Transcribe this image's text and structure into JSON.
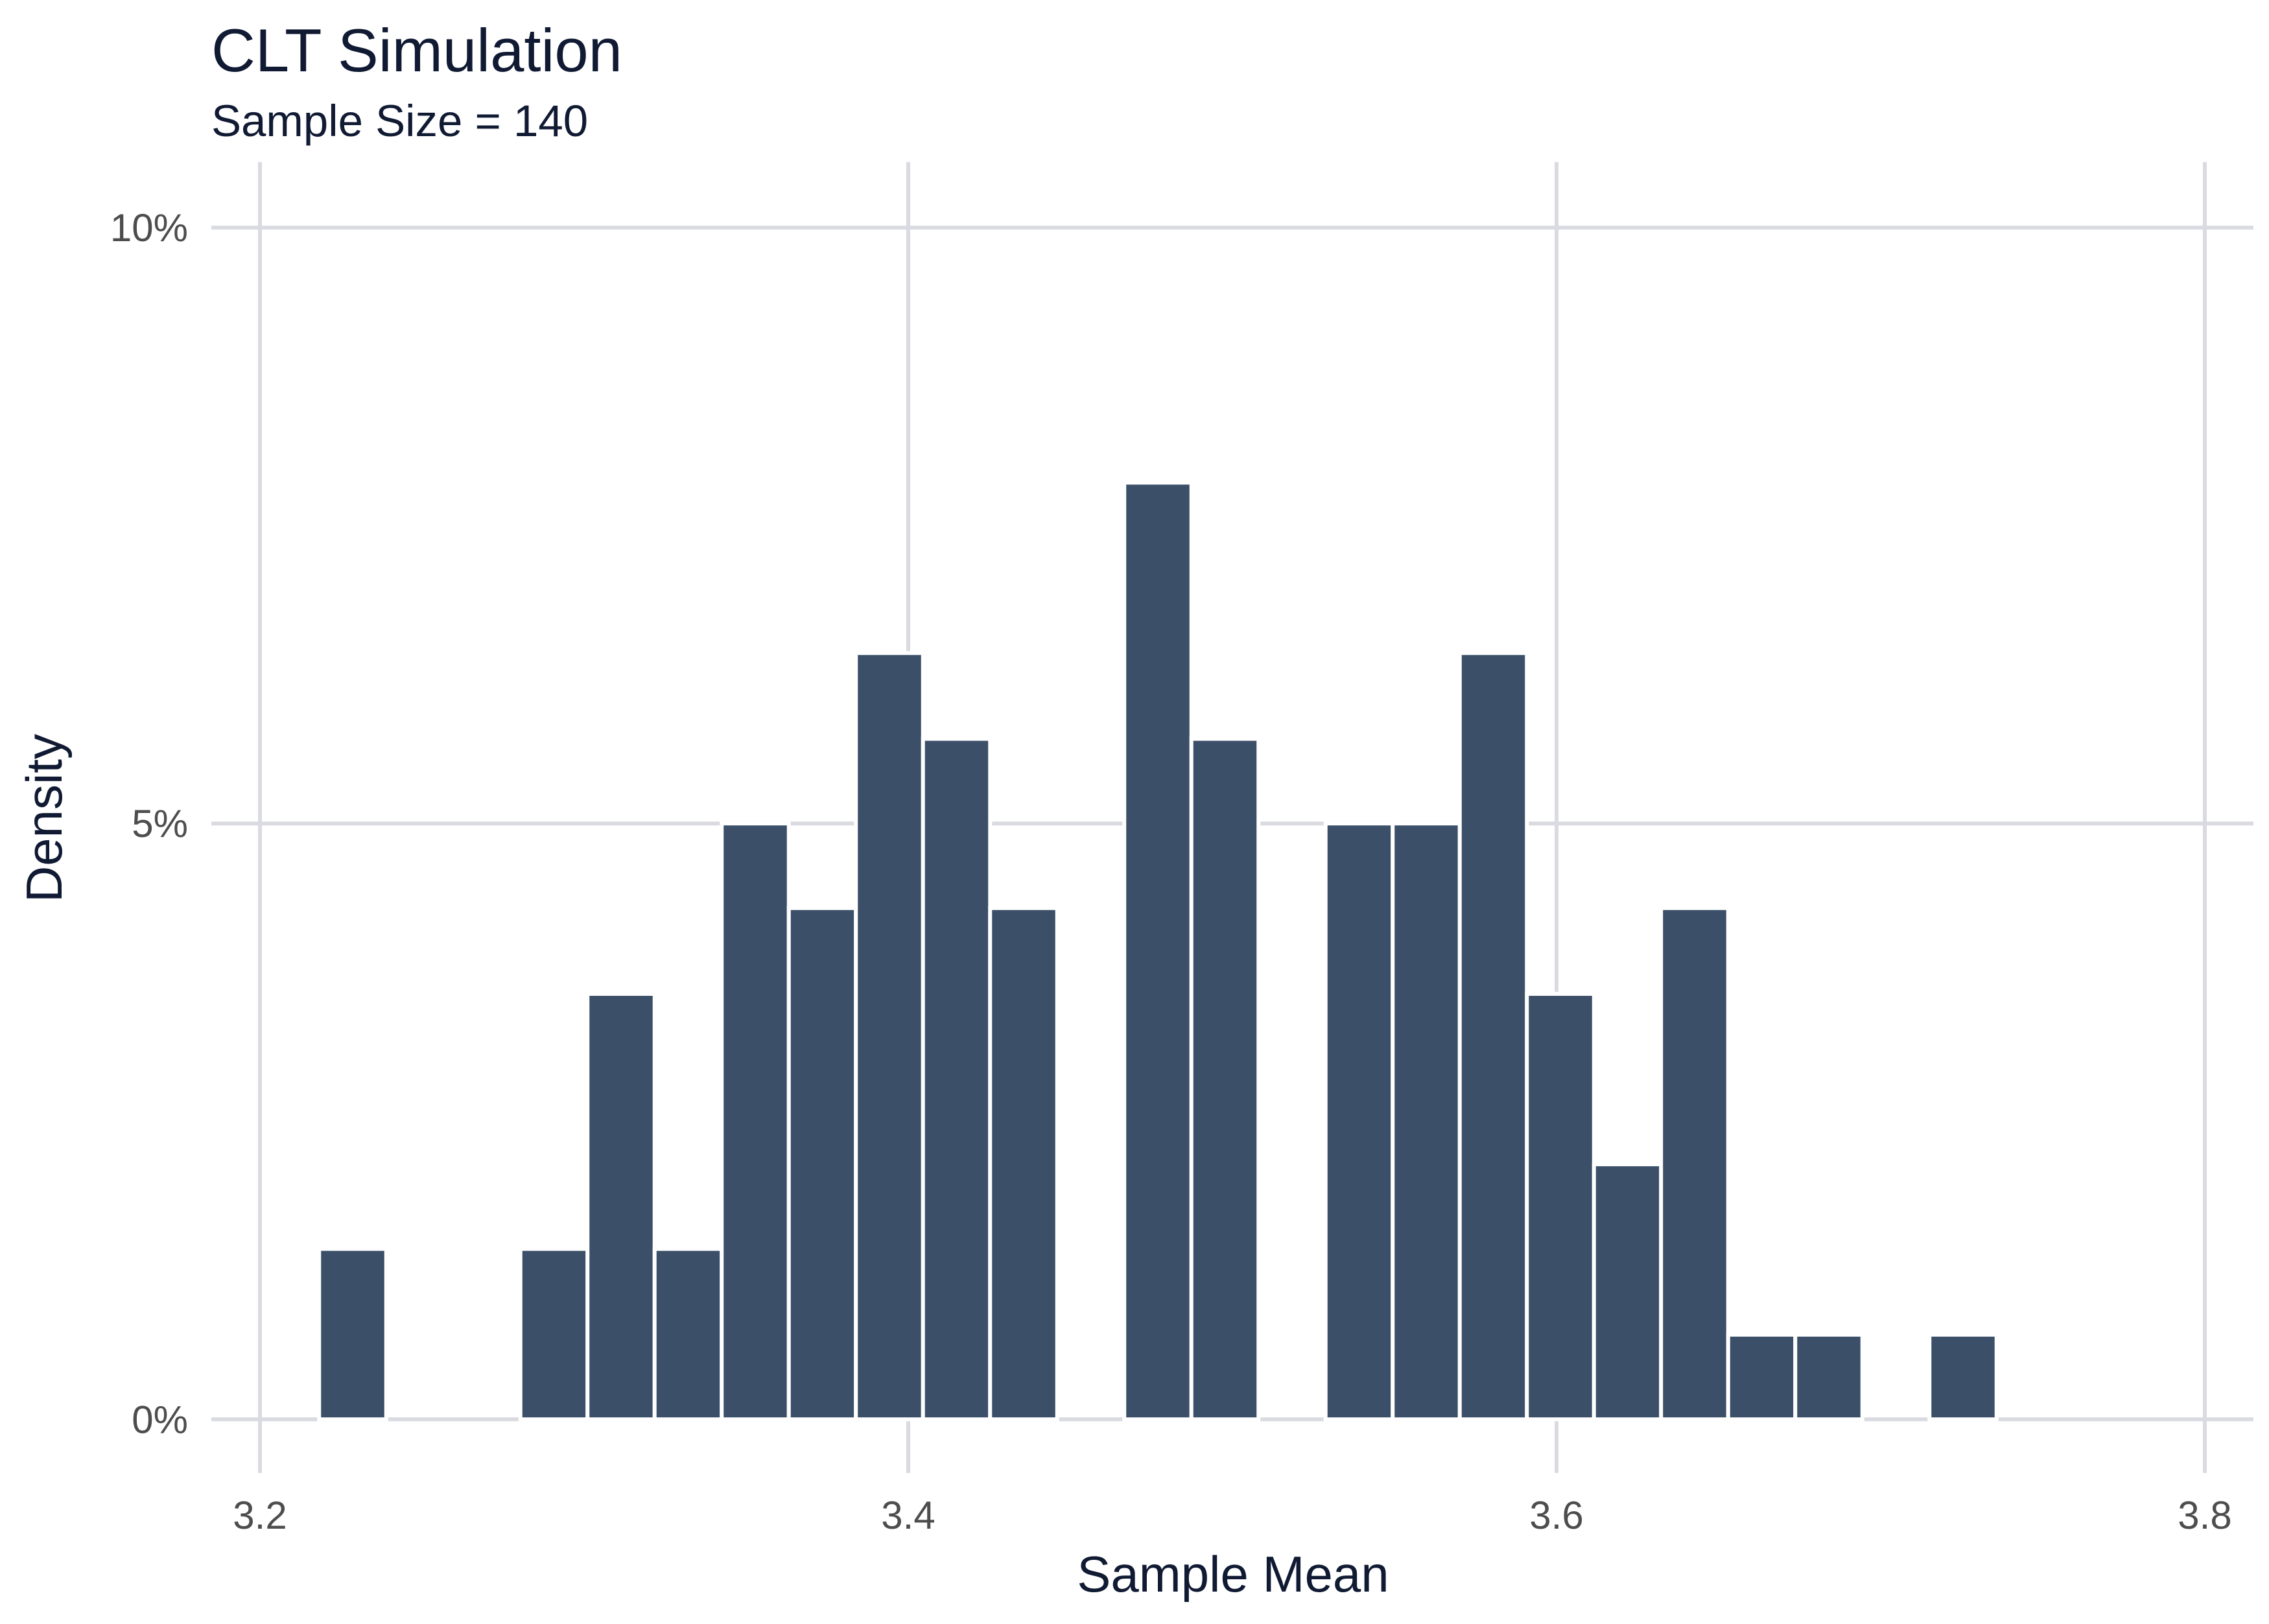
{
  "chart_data": {
    "type": "bar",
    "title": "CLT Simulation",
    "subtitle": "Sample Size = 140",
    "xlabel": "Sample Mean",
    "ylabel": "Density",
    "xlim": [
      3.185,
      3.815
    ],
    "ylim": [
      -0.0045,
      0.1055
    ],
    "x_ticks": [
      {
        "value": 3.2,
        "label": "3.2"
      },
      {
        "value": 3.4,
        "label": "3.4"
      },
      {
        "value": 3.6,
        "label": "3.6"
      },
      {
        "value": 3.8,
        "label": "3.8"
      }
    ],
    "y_ticks": [
      {
        "value": 0.0,
        "label": "0%"
      },
      {
        "value": 0.05,
        "label": "5%"
      },
      {
        "value": 0.1,
        "label": "10%"
      }
    ],
    "bin_width": 0.0207,
    "bins": [
      {
        "center": 3.2286,
        "value": 0.0143
      },
      {
        "center": 3.2493,
        "value": 0
      },
      {
        "center": 3.27,
        "value": 0
      },
      {
        "center": 3.2907,
        "value": 0.0143
      },
      {
        "center": 3.3114,
        "value": 0.0357
      },
      {
        "center": 3.3321,
        "value": 0.0143
      },
      {
        "center": 3.3528,
        "value": 0.05
      },
      {
        "center": 3.3735,
        "value": 0.0429
      },
      {
        "center": 3.3942,
        "value": 0.0643
      },
      {
        "center": 3.4149,
        "value": 0.0571
      },
      {
        "center": 3.4356,
        "value": 0.0429
      },
      {
        "center": 3.4563,
        "value": 0
      },
      {
        "center": 3.477,
        "value": 0.0786
      },
      {
        "center": 3.4977,
        "value": 0.0571
      },
      {
        "center": 3.5184,
        "value": 0
      },
      {
        "center": 3.5391,
        "value": 0.05
      },
      {
        "center": 3.5598,
        "value": 0.05
      },
      {
        "center": 3.5805,
        "value": 0.0643
      },
      {
        "center": 3.6012,
        "value": 0.0357
      },
      {
        "center": 3.6219,
        "value": 0.0214
      },
      {
        "center": 3.6426,
        "value": 0.0429
      },
      {
        "center": 3.6633,
        "value": 0.0071
      },
      {
        "center": 3.684,
        "value": 0.0071
      },
      {
        "center": 3.7047,
        "value": 0
      },
      {
        "center": 3.7254,
        "value": 0.0071
      }
    ],
    "grid": true,
    "colors": {
      "bar": "#3b4f69",
      "bar_outline": "#ffffff",
      "grid": "#d9dbe1",
      "text": "#101a33",
      "tick_text": "#4d4d4d"
    }
  }
}
